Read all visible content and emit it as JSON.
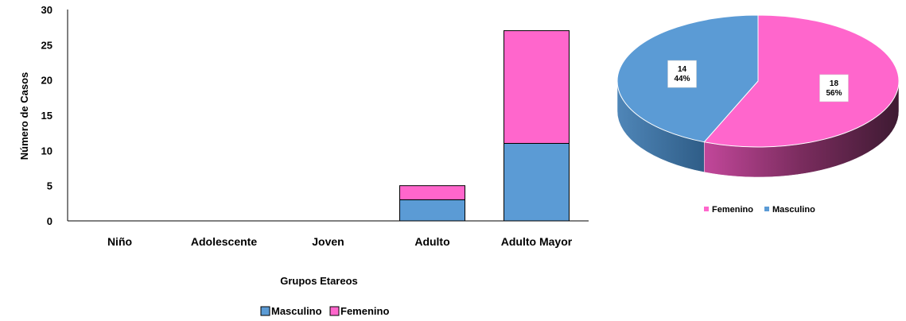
{
  "chart_data": [
    {
      "type": "bar",
      "stacked": true,
      "categories": [
        "Niño",
        "Adolescente",
        "Joven",
        "Adulto",
        "Adulto Mayor"
      ],
      "series": [
        {
          "name": "Masculino",
          "values": [
            0,
            0,
            0,
            3,
            11
          ],
          "color": "#5B9BD5"
        },
        {
          "name": "Femenino",
          "values": [
            0,
            0,
            0,
            2,
            16
          ],
          "color": "#FF66CC"
        }
      ],
      "xlabel": "Grupos Etareos",
      "ylabel": "Número de Casos",
      "ylim": [
        0,
        30
      ],
      "yticks": [
        "0",
        "5",
        "10",
        "15",
        "20",
        "25",
        "30"
      ],
      "grid": false,
      "legend_position": "bottom"
    },
    {
      "type": "pie",
      "style": "3d",
      "slices": [
        {
          "name": "Femenino",
          "value": 18,
          "percent": "56%",
          "color": "#FF66CC"
        },
        {
          "name": "Masculino",
          "value": 14,
          "percent": "44%",
          "color": "#5B9BD5"
        }
      ],
      "legend_position": "bottom"
    }
  ]
}
